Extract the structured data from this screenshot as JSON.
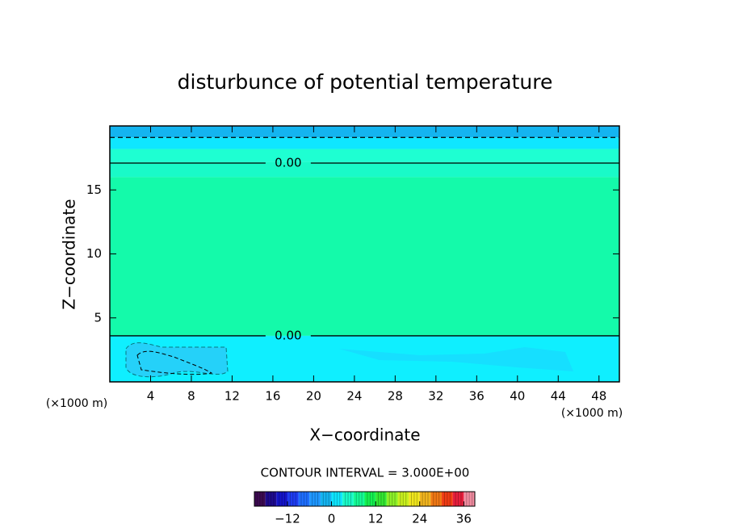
{
  "chart_data": {
    "type": "contour",
    "title": "disturbunce of potential temperature",
    "x_label": "X−coordinate",
    "y_label": "Z−coordinate",
    "x_unit_label": "(×1000 m)",
    "y_unit_label": "(×1000 m)",
    "xlim": [
      0,
      50
    ],
    "ylim": [
      0,
      20
    ],
    "xticks": [
      4,
      8,
      12,
      16,
      20,
      24,
      28,
      32,
      36,
      40,
      44,
      48
    ],
    "yticks": [
      5,
      10,
      15
    ],
    "fill_bands": [
      {
        "y": [
          19.1,
          20
        ],
        "color": "#14b4f0"
      },
      {
        "y": [
          18.2,
          19.1
        ],
        "color": "#0fe6ff"
      },
      {
        "y": [
          17.2,
          18.2
        ],
        "color": "#1effd2"
      },
      {
        "y": [
          16,
          17.2
        ],
        "color": "#19fac8"
      },
      {
        "y": [
          3.6,
          16
        ],
        "color": "#14faaa"
      },
      {
        "y": [
          0,
          3.6
        ],
        "color": "#0fefff"
      }
    ],
    "contours": [
      {
        "y": 19.1,
        "style": "dashed"
      },
      {
        "y": 17.1,
        "style": "solid",
        "label": "0.00",
        "label_x": 17.5
      },
      {
        "y": 3.6,
        "style": "solid",
        "label": "0.00",
        "label_x": 17.5
      }
    ],
    "contour_interval_text": "CONTOUR INTERVAL = 3.000E+00",
    "colorbar": {
      "lim": [
        -21,
        39
      ],
      "ticks": [
        {
          "value": -12,
          "label": "−12"
        },
        0,
        12,
        24,
        36
      ],
      "colors": [
        "#3c0a50",
        "#1e0a8c",
        "#1414c8",
        "#1e3cf0",
        "#1e6eff",
        "#1e96ff",
        "#14b4f0",
        "#0fe6ff",
        "#19fac8",
        "#14fa96",
        "#14f050",
        "#32e632",
        "#8cf028",
        "#c8f01e",
        "#f0e61e",
        "#f0b41e",
        "#f07814",
        "#f03c14",
        "#e61e3c",
        "#f08ca0"
      ]
    }
  }
}
